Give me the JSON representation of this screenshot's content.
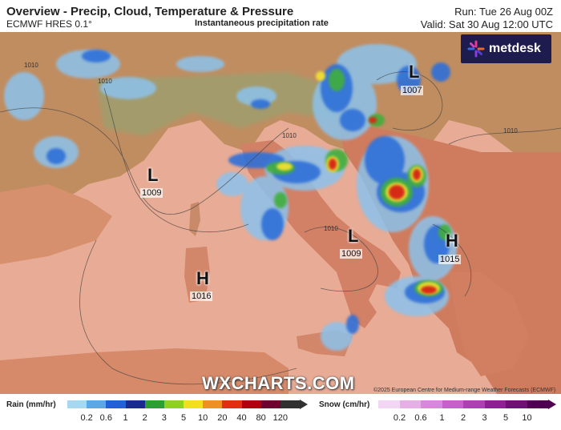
{
  "header": {
    "title": "Overview - Precip, Cloud, Temperature & Pressure",
    "model": "ECMWF HRES 0.1°",
    "subtitle": "Instantaneous precipitation rate",
    "run": "Run: Tue 26 Aug 00Z",
    "valid": "Valid: Sat 30 Aug 12:00 UTC"
  },
  "logo": {
    "text": "metdesk",
    "icon": "metdesk-star-icon"
  },
  "pressure_centers": [
    {
      "type": "L",
      "value": "1007"
    },
    {
      "type": "L",
      "value": "1009"
    },
    {
      "type": "L",
      "value": "1009"
    },
    {
      "type": "H",
      "value": "1015"
    },
    {
      "type": "H",
      "value": "1016"
    }
  ],
  "isobar_labels": [
    "1010",
    "1010",
    "1010",
    "1010",
    "1010"
  ],
  "watermark": "WXCHARTS.COM",
  "copyright": "©2025 European Centre for Medium-range Weather Forecasts (ECMWF)",
  "legend": {
    "rain": {
      "title": "Rain (mm/hr)",
      "ticks": [
        "0.2",
        "0.6",
        "1",
        "2",
        "3",
        "5",
        "10",
        "20",
        "40",
        "80",
        "120"
      ],
      "colors": [
        "#a8d8f0",
        "#5aa8e8",
        "#2060d8",
        "#1a2a90",
        "#2aa030",
        "#90d020",
        "#f0e020",
        "#f09020",
        "#e03010",
        "#b00010",
        "#700030",
        "#303030"
      ]
    },
    "snow": {
      "title": "Snow (cm/hr)",
      "ticks": [
        "0.2",
        "0.6",
        "1",
        "2",
        "3",
        "5",
        "10"
      ],
      "colors": [
        "#f3d6f3",
        "#e6b0e6",
        "#d888d8",
        "#c860c8",
        "#b040b0",
        "#902090",
        "#701070",
        "#500050"
      ]
    }
  },
  "colors": {
    "sea": "#e9a993",
    "land_south": "#d9876c",
    "land_north": "#b98a5a",
    "alps": "#9c9b6a",
    "rain_light": "#7fb8e8",
    "rain_blue": "#2f6fd8",
    "rain_green": "#3fae3a",
    "rain_yellow": "#f0e030",
    "rain_red": "#d62a12"
  }
}
